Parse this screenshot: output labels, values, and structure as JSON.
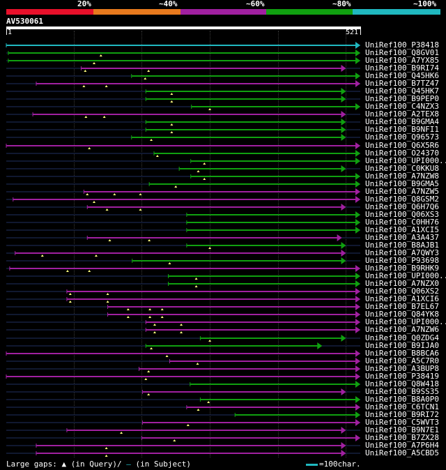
{
  "header": {
    "percent_labels": [
      "20%",
      "~40%",
      "~60%",
      "~80%",
      "~100%"
    ],
    "colors": [
      "#e8102a",
      "#e87a1e",
      "#a020a0",
      "#10a010",
      "#20b8c0"
    ],
    "query_name": "AV530061",
    "scale_start": "1",
    "scale_end": "521"
  },
  "hits": [
    {
      "name": "UniRef100_P38418",
      "color": "#20b8c0",
      "start": 1,
      "end": 521,
      "gaps": []
    },
    {
      "name": "UniRef100_Q8GV01",
      "color": "#10a010",
      "start": 4,
      "end": 521,
      "gaps": [
        140
      ]
    },
    {
      "name": "UniRef100_A7YX85",
      "color": "#10a010",
      "start": 4,
      "end": 521,
      "gaps": [
        130
      ]
    },
    {
      "name": "UniRef100_B9RI74",
      "color": "#a020a0",
      "start": 111,
      "end": 500,
      "gaps": [
        117,
        210
      ]
    },
    {
      "name": "UniRef100_Q45HK6",
      "color": "#10a010",
      "start": 185,
      "end": 521,
      "gaps": [
        205
      ]
    },
    {
      "name": "UniRef100_B7TZ47",
      "color": "#a020a0",
      "start": 45,
      "end": 521,
      "gaps": [
        115,
        148
      ]
    },
    {
      "name": "UniRef100_Q45HK7",
      "color": "#10a010",
      "start": 206,
      "end": 500,
      "gaps": [
        244
      ]
    },
    {
      "name": "UniRef100_B9PEP0",
      "color": "#10a010",
      "start": 206,
      "end": 500,
      "gaps": [
        244
      ]
    },
    {
      "name": "UniRef100_C4NZX3",
      "color": "#10a010",
      "start": 273,
      "end": 521,
      "gaps": [
        300
      ]
    },
    {
      "name": "UniRef100_A2TEX8",
      "color": "#a020a0",
      "start": 40,
      "end": 500,
      "gaps": [
        118,
        145
      ]
    },
    {
      "name": "UniRef100_B9GMA4",
      "color": "#10a010",
      "start": 206,
      "end": 500,
      "gaps": [
        244
      ]
    },
    {
      "name": "UniRef100_B9NFI1",
      "color": "#10a010",
      "start": 206,
      "end": 500,
      "gaps": [
        244
      ]
    },
    {
      "name": "UniRef100_Q96573",
      "color": "#10a010",
      "start": 185,
      "end": 500,
      "gaps": [
        214
      ]
    },
    {
      "name": "UniRef100_Q6X5R6",
      "color": "#a020a0",
      "start": 1,
      "end": 521,
      "gaps": [
        123
      ]
    },
    {
      "name": "UniRef100_O24370",
      "color": "#10a010",
      "start": 218,
      "end": 521,
      "gaps": [
        223
      ]
    },
    {
      "name": "UniRef100_UPI000..",
      "color": "#10a010",
      "start": 272,
      "end": 521,
      "gaps": [
        292
      ]
    },
    {
      "name": "UniRef100_C0KKU8",
      "color": "#10a010",
      "start": 255,
      "end": 500,
      "gaps": [
        283
      ]
    },
    {
      "name": "UniRef100_A7NZW8",
      "color": "#10a010",
      "start": 272,
      "end": 521,
      "gaps": [
        292
      ]
    },
    {
      "name": "UniRef100_B9GMA5",
      "color": "#10a010",
      "start": 211,
      "end": 521,
      "gaps": [
        250
      ]
    },
    {
      "name": "UniRef100_A7NZW5",
      "color": "#a020a0",
      "start": 115,
      "end": 521,
      "gaps": [
        120,
        160,
        198
      ]
    },
    {
      "name": "UniRef100_Q8GSM2",
      "color": "#a020a0",
      "start": 11,
      "end": 521,
      "gaps": [
        130
      ]
    },
    {
      "name": "UniRef100_Q6H7Q6",
      "color": "#a020a0",
      "start": 120,
      "end": 500,
      "gaps": [
        149,
        198
      ]
    },
    {
      "name": "UniRef100_Q06XS3",
      "color": "#10a010",
      "start": 266,
      "end": 521,
      "gaps": []
    },
    {
      "name": "UniRef100_C0HH76",
      "color": "#10a010",
      "start": 266,
      "end": 521,
      "gaps": []
    },
    {
      "name": "UniRef100_A1XCI5",
      "color": "#10a010",
      "start": 266,
      "end": 521,
      "gaps": []
    },
    {
      "name": "UniRef100_A3A437",
      "color": "#a020a0",
      "start": 120,
      "end": 494,
      "gaps": [
        153,
        211
      ]
    },
    {
      "name": "UniRef100_B8AJB1",
      "color": "#10a010",
      "start": 266,
      "end": 500,
      "gaps": [
        300
      ]
    },
    {
      "name": "UniRef100_A7QWY3",
      "color": "#a020a0",
      "start": 14,
      "end": 500,
      "gaps": [
        54,
        133
      ]
    },
    {
      "name": "UniRef100_P93698",
      "color": "#10a010",
      "start": 186,
      "end": 500,
      "gaps": [
        241
      ]
    },
    {
      "name": "UniRef100_B9RHK9",
      "color": "#a020a0",
      "start": 6,
      "end": 521,
      "gaps": [
        91,
        123
      ]
    },
    {
      "name": "UniRef100_UPI000..",
      "color": "#10a010",
      "start": 239,
      "end": 521,
      "gaps": [
        280
      ]
    },
    {
      "name": "UniRef100_A7NZX0",
      "color": "#10a010",
      "start": 239,
      "end": 521,
      "gaps": [
        280
      ]
    },
    {
      "name": "UniRef100_Q06XS2",
      "color": "#a020a0",
      "start": 90,
      "end": 521,
      "gaps": [
        95,
        150
      ]
    },
    {
      "name": "UniRef100_A1XCI6",
      "color": "#a020a0",
      "start": 90,
      "end": 521,
      "gaps": [
        95,
        150
      ]
    },
    {
      "name": "UniRef100_B7EL67",
      "color": "#a020a0",
      "start": 150,
      "end": 521,
      "gaps": [
        180,
        212,
        230
      ]
    },
    {
      "name": "UniRef100_Q84YK8",
      "color": "#a020a0",
      "start": 150,
      "end": 521,
      "gaps": [
        180,
        212,
        230
      ]
    },
    {
      "name": "UniRef100_UPI000..",
      "color": "#a020a0",
      "start": 206,
      "end": 521,
      "gaps": [
        219,
        258
      ]
    },
    {
      "name": "UniRef100_A7NZW6",
      "color": "#a020a0",
      "start": 206,
      "end": 521,
      "gaps": [
        219,
        258
      ]
    },
    {
      "name": "UniRef100_Q0ZDG4",
      "color": "#10a010",
      "start": 286,
      "end": 500,
      "gaps": [
        300
      ]
    },
    {
      "name": "UniRef100_B9IJA0",
      "color": "#10a010",
      "start": 206,
      "end": 465,
      "gaps": [
        214
      ]
    },
    {
      "name": "UniRef100_B8BCA6",
      "color": "#a020a0",
      "start": 1,
      "end": 521,
      "gaps": [
        237
      ]
    },
    {
      "name": "UniRef100_A5C7R0",
      "color": "#a020a0",
      "start": 241,
      "end": 521,
      "gaps": [
        282
      ]
    },
    {
      "name": "UniRef100_A3BUP8",
      "color": "#a020a0",
      "start": 196,
      "end": 521,
      "gaps": [
        210
      ]
    },
    {
      "name": "UniRef100_P38419",
      "color": "#a020a0",
      "start": 1,
      "end": 521,
      "gaps": [
        206
      ]
    },
    {
      "name": "UniRef100_Q8W418",
      "color": "#10a010",
      "start": 271,
      "end": 521,
      "gaps": []
    },
    {
      "name": "UniRef100_B9SS35",
      "color": "#a020a0",
      "start": 201,
      "end": 500,
      "gaps": [
        210
      ]
    },
    {
      "name": "UniRef100_B8A0P0",
      "color": "#10a010",
      "start": 286,
      "end": 521,
      "gaps": [
        298
      ]
    },
    {
      "name": "UniRef100_C6TCN1",
      "color": "#a020a0",
      "start": 266,
      "end": 521,
      "gaps": [
        283
      ]
    },
    {
      "name": "UniRef100_B9RI72",
      "color": "#10a010",
      "start": 337,
      "end": 521,
      "gaps": []
    },
    {
      "name": "UniRef100_C5WVT3",
      "color": "#a020a0",
      "start": 201,
      "end": 521,
      "gaps": [
        268
      ]
    },
    {
      "name": "UniRef100_B9N7E1",
      "color": "#a020a0",
      "start": 90,
      "end": 500,
      "gaps": [
        170
      ]
    },
    {
      "name": "UniRef100_B7ZX28",
      "color": "#a020a0",
      "start": 200,
      "end": 521,
      "gaps": [
        248
      ]
    },
    {
      "name": "UniRef100_A7P6H4",
      "color": "#a020a0",
      "start": 45,
      "end": 500,
      "gaps": [
        148
      ]
    },
    {
      "name": "UniRef100_A5CBD5",
      "color": "#a020a0",
      "start": 45,
      "end": 500,
      "gaps": [
        148
      ]
    }
  ],
  "legend": {
    "gaps_label": "Large gaps:",
    "query_symbol": "▲",
    "query_text": "(in Query)/",
    "subject_symbol": "—",
    "subject_text": " (in Subject)",
    "scale_text": "=100char.",
    "scale_color": "#20b8c0"
  }
}
